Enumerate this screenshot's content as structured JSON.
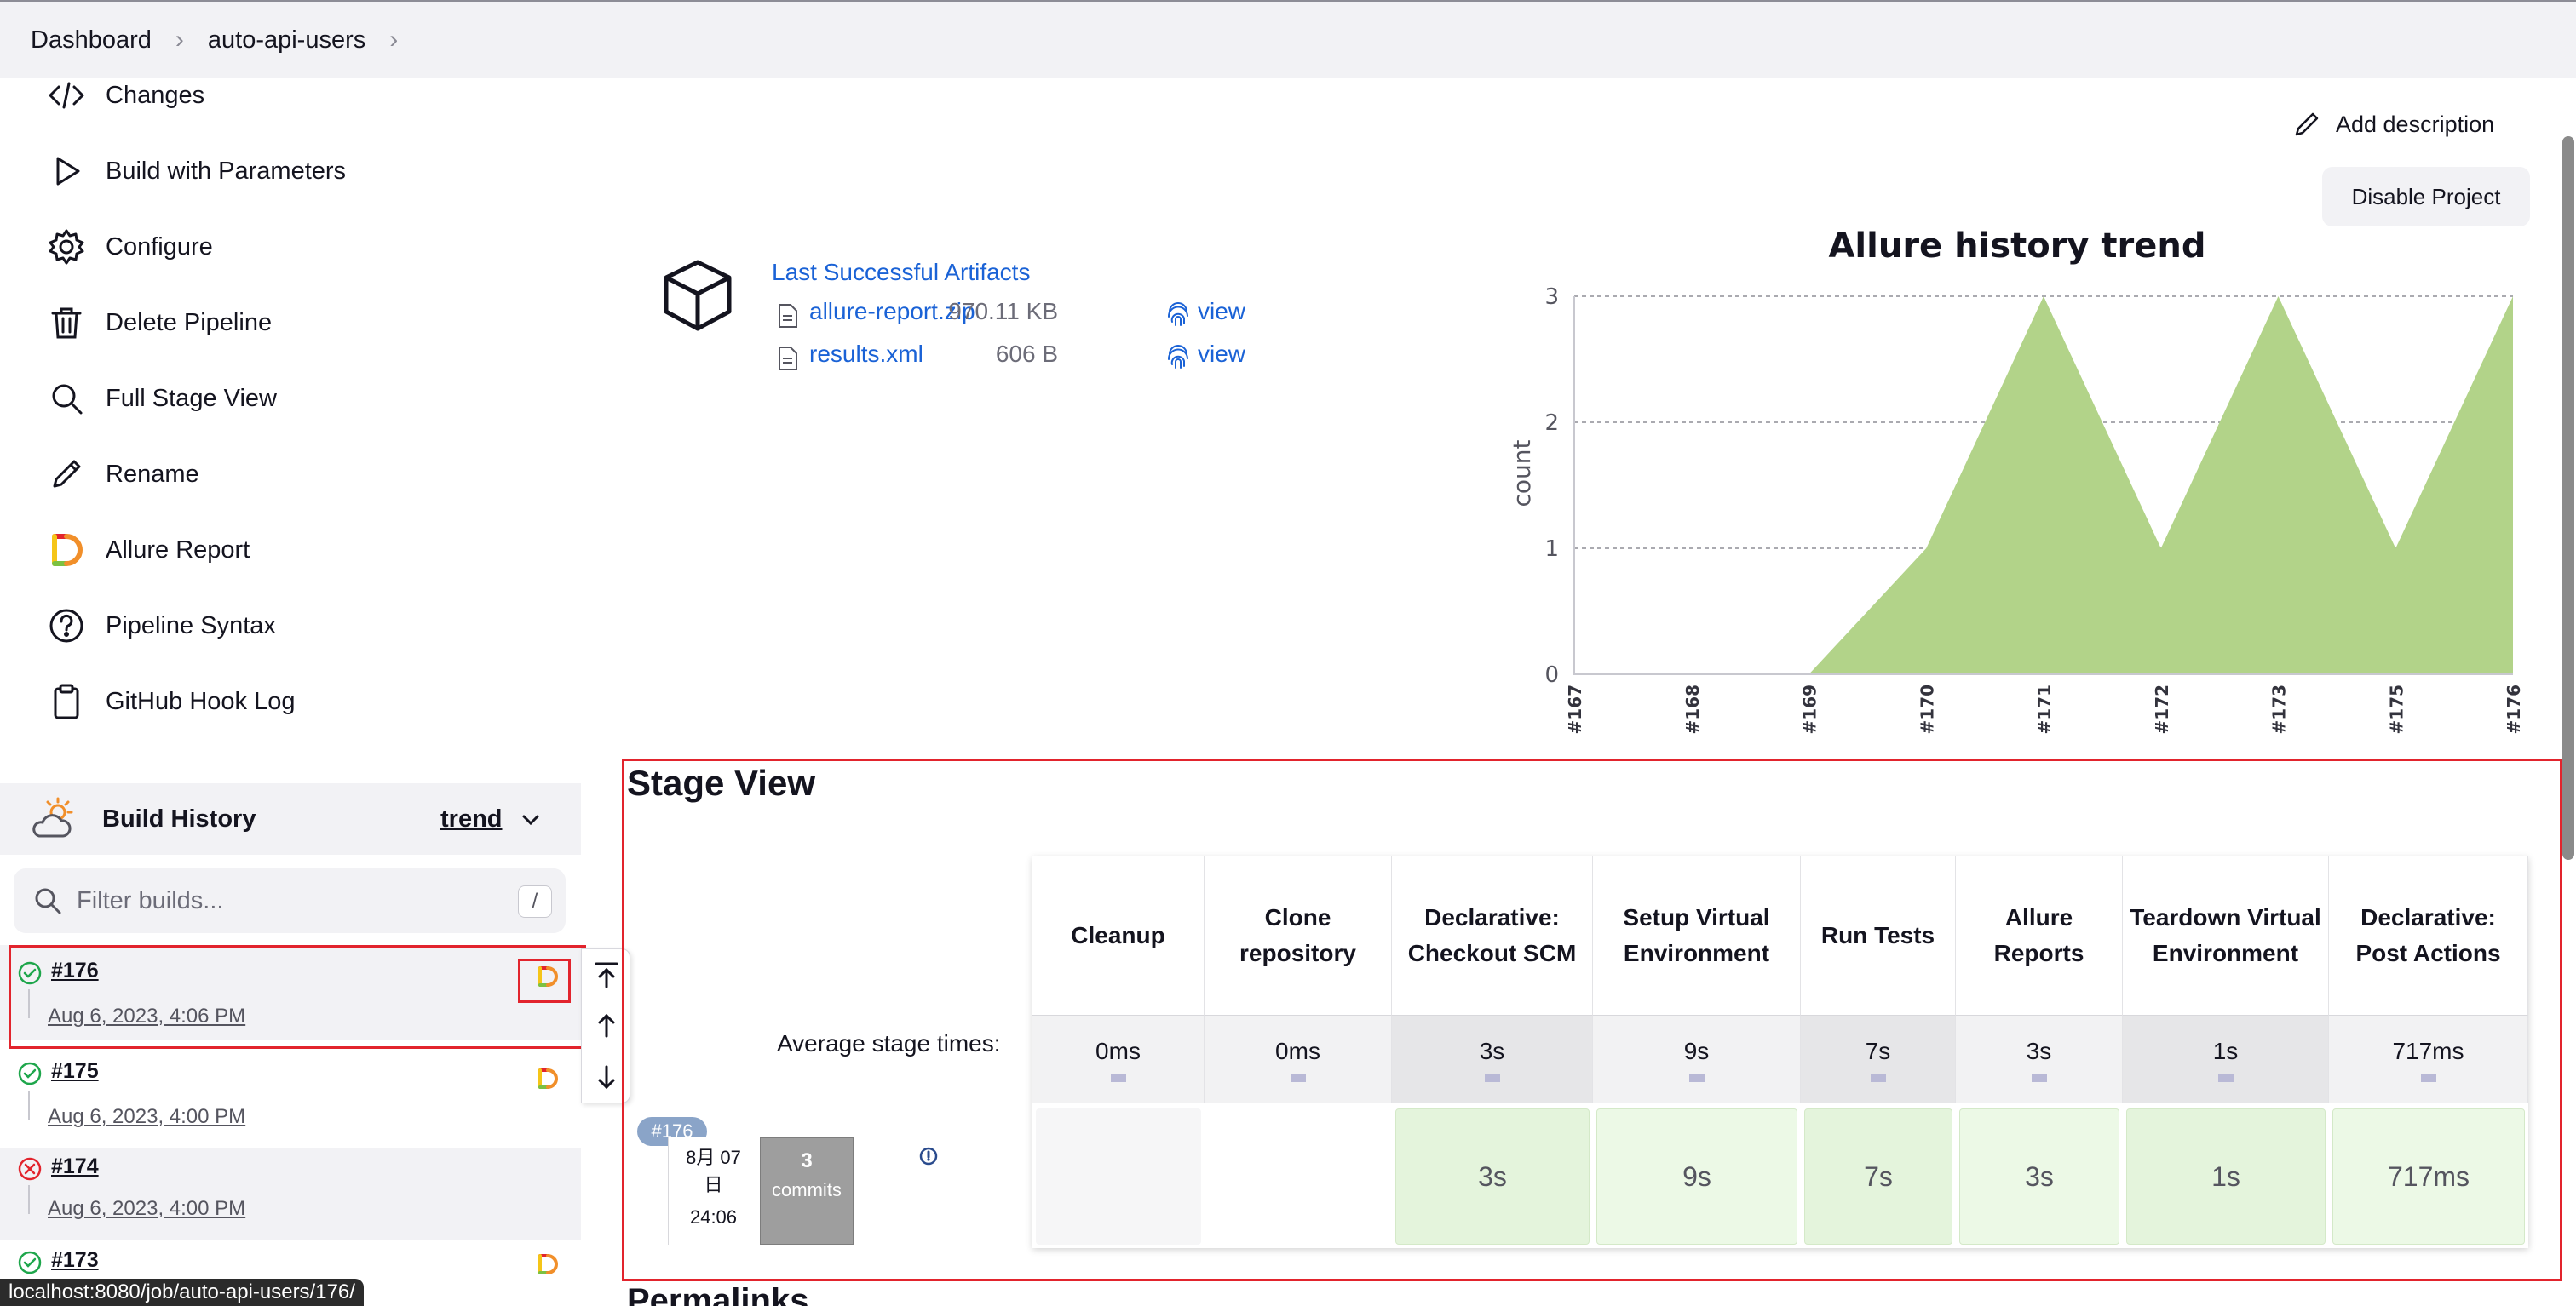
{
  "breadcrumb": [
    "Dashboard",
    "auto-api-users"
  ],
  "sidebar": {
    "items": [
      {
        "label": "Changes",
        "icon": "code-icon"
      },
      {
        "label": "Build with Parameters",
        "icon": "play-icon"
      },
      {
        "label": "Configure",
        "icon": "gear-icon"
      },
      {
        "label": "Delete Pipeline",
        "icon": "trash-icon"
      },
      {
        "label": "Full Stage View",
        "icon": "search-icon"
      },
      {
        "label": "Rename",
        "icon": "pencil-icon"
      },
      {
        "label": "Allure Report",
        "icon": "allure-icon"
      },
      {
        "label": "Pipeline Syntax",
        "icon": "help-icon"
      },
      {
        "label": "GitHub Hook Log",
        "icon": "clipboard-icon"
      }
    ]
  },
  "build_history": {
    "title": "Build History",
    "trend_label": "trend",
    "filter_placeholder": "Filter builds...",
    "filter_shortcut": "/",
    "builds": [
      {
        "number": "#176",
        "date": "Aug 6, 2023, 4:06 PM",
        "status": "success"
      },
      {
        "number": "#175",
        "date": "Aug 6, 2023, 4:00 PM",
        "status": "success"
      },
      {
        "number": "#174",
        "date": "Aug 6, 2023, 4:00 PM",
        "status": "failed"
      },
      {
        "number": "#173",
        "date": "",
        "status": "success"
      }
    ]
  },
  "status_url": "localhost:8080/job/auto-api-users/176/",
  "main": {
    "add_description": "Add description",
    "disable_project": "Disable Project",
    "artifacts": {
      "title": "Last Successful Artifacts",
      "files": [
        {
          "name": "allure-report.zip",
          "size": "970.11 KB",
          "view": "view"
        },
        {
          "name": "results.xml",
          "size": "606 B",
          "view": "view"
        }
      ]
    },
    "stage_view": {
      "title": "Stage View",
      "average_label": "Average stage times:",
      "columns": [
        {
          "name": "Cleanup",
          "avg": "0ms",
          "cell": ""
        },
        {
          "name": "Clone repository",
          "avg": "0ms",
          "cell": ""
        },
        {
          "name": "Declarative: Checkout SCM",
          "avg": "3s",
          "cell": "3s"
        },
        {
          "name": "Setup Virtual Environment",
          "avg": "9s",
          "cell": "9s"
        },
        {
          "name": "Run Tests",
          "avg": "7s",
          "cell": "7s"
        },
        {
          "name": "Allure Reports",
          "avg": "3s",
          "cell": "3s"
        },
        {
          "name": "Teardown Virtual Environment",
          "avg": "1s",
          "cell": "1s"
        },
        {
          "name": "Declarative: Post Actions",
          "avg": "717ms",
          "cell": "717ms"
        }
      ],
      "run": {
        "tag": "#176",
        "date_line1": "8月 07",
        "date_line2": "日",
        "time": "24:06",
        "commits_count": "3",
        "commits_label": "commits"
      }
    },
    "permalinks_title": "Permalinks"
  },
  "chart_data": {
    "type": "area",
    "title": "Allure history trend",
    "ylabel": "count",
    "xlabel": "",
    "categories": [
      "#167",
      "#168",
      "#169",
      "#170",
      "#171",
      "#172",
      "#173",
      "#175",
      "#176"
    ],
    "series": [
      {
        "values": [
          0,
          0,
          0,
          1,
          3,
          1,
          3,
          1,
          3
        ]
      }
    ],
    "ylim": [
      0,
      3
    ],
    "yticks": [
      "0",
      "1",
      "2",
      "3"
    ],
    "grid": true,
    "color": "#b2d389"
  }
}
